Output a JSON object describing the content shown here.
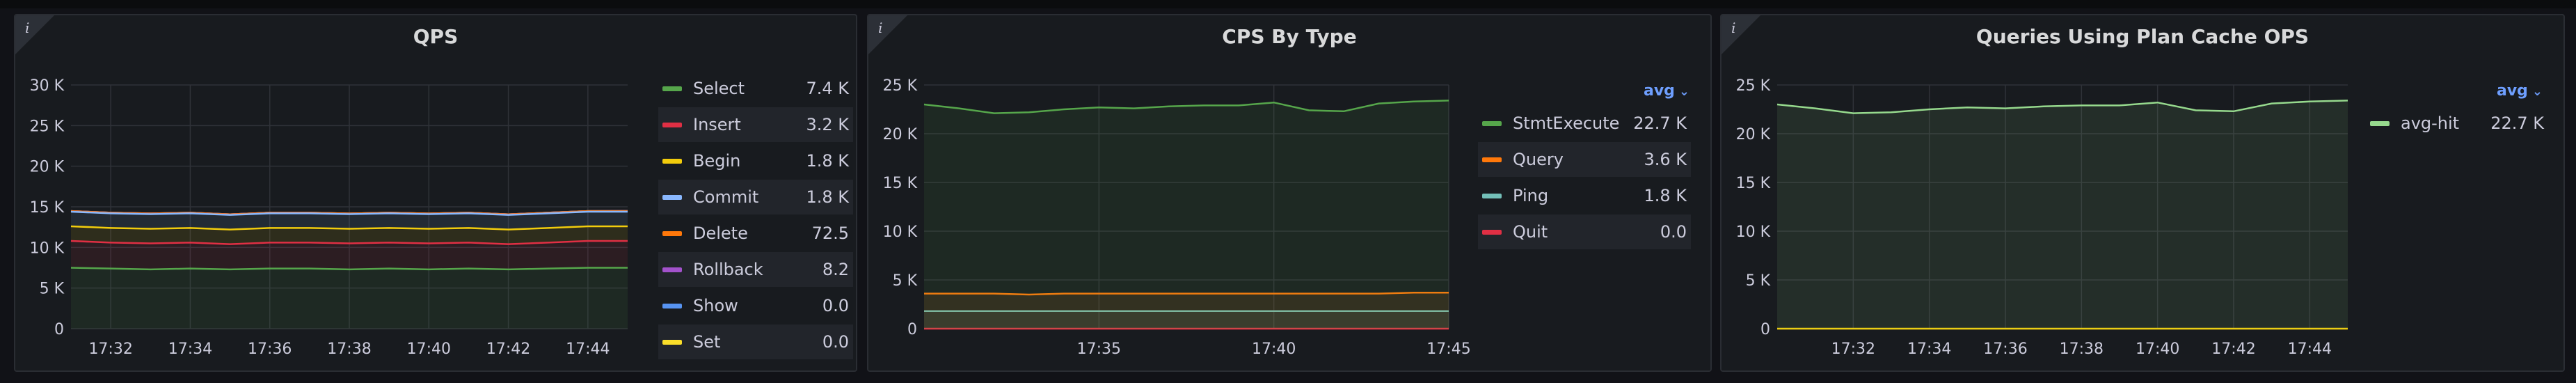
{
  "panels": [
    {
      "title": "QPS",
      "info": "i",
      "legend_header": "",
      "legend": [
        {
          "name": "Select",
          "value": "7.4 K",
          "color": "#56a64b"
        },
        {
          "name": "Insert",
          "value": "3.2 K",
          "color": "#e02f44"
        },
        {
          "name": "Begin",
          "value": "1.8 K",
          "color": "#f2cc0c"
        },
        {
          "name": "Commit",
          "value": "1.8 K",
          "color": "#8ab8ff"
        },
        {
          "name": "Delete",
          "value": "72.5",
          "color": "#ff780a"
        },
        {
          "name": "Rollback",
          "value": "8.2",
          "color": "#a352cc"
        },
        {
          "name": "Show",
          "value": "0.0",
          "color": "#5794f2"
        },
        {
          "name": "Set",
          "value": "0.0",
          "color": "#fade2a"
        }
      ]
    },
    {
      "title": "CPS By Type",
      "info": "i",
      "legend_header": "avg",
      "legend": [
        {
          "name": "StmtExecute",
          "value": "22.7 K",
          "color": "#56a64b"
        },
        {
          "name": "Query",
          "value": "3.6 K",
          "color": "#ff780a"
        },
        {
          "name": "Ping",
          "value": "1.8 K",
          "color": "#73bfb8"
        },
        {
          "name": "Quit",
          "value": "0.0",
          "color": "#e02f44"
        }
      ]
    },
    {
      "title": "Queries Using Plan Cache OPS",
      "info": "i",
      "legend_header": "avg",
      "legend": [
        {
          "name": "avg-hit",
          "value": "22.7 K",
          "color": "#96d98d"
        }
      ]
    }
  ],
  "chart_data": [
    {
      "type": "area",
      "title": "QPS",
      "xlabel": "",
      "ylabel": "",
      "ylim": [
        0,
        30000
      ],
      "yticks": [
        "0",
        "5 K",
        "10 K",
        "15 K",
        "20 K",
        "25 K",
        "30 K"
      ],
      "xticks": [
        "17:32",
        "17:34",
        "17:36",
        "17:38",
        "17:40",
        "17:42",
        "17:44"
      ],
      "x": [
        "17:31",
        "17:32",
        "17:33",
        "17:34",
        "17:35",
        "17:36",
        "17:37",
        "17:38",
        "17:39",
        "17:40",
        "17:41",
        "17:42",
        "17:43",
        "17:44",
        "17:45"
      ],
      "series": [
        {
          "name": "Select",
          "color": "#56a64b",
          "values": [
            7500,
            7400,
            7300,
            7400,
            7300,
            7400,
            7400,
            7300,
            7400,
            7300,
            7400,
            7300,
            7400,
            7500,
            7500
          ]
        },
        {
          "name": "Insert",
          "color": "#e02f44",
          "values": [
            3300,
            3200,
            3200,
            3200,
            3100,
            3200,
            3200,
            3200,
            3200,
            3200,
            3200,
            3100,
            3200,
            3300,
            3300
          ]
        },
        {
          "name": "Begin",
          "color": "#f2cc0c",
          "values": [
            1800,
            1800,
            1800,
            1800,
            1800,
            1800,
            1800,
            1800,
            1800,
            1800,
            1800,
            1800,
            1800,
            1800,
            1800
          ]
        },
        {
          "name": "Commit",
          "color": "#8ab8ff",
          "values": [
            1800,
            1800,
            1800,
            1800,
            1800,
            1800,
            1800,
            1800,
            1800,
            1800,
            1800,
            1800,
            1800,
            1800,
            1800
          ]
        },
        {
          "name": "Delete",
          "color": "#ff780a",
          "values": [
            72,
            72,
            73,
            72,
            72,
            73,
            72,
            72,
            73,
            72,
            72,
            73,
            72,
            72,
            73
          ]
        },
        {
          "name": "Rollback",
          "color": "#a352cc",
          "values": [
            8,
            8,
            8,
            8,
            8,
            8,
            8,
            8,
            8,
            8,
            8,
            8,
            8,
            8,
            8
          ]
        },
        {
          "name": "Show",
          "color": "#5794f2",
          "values": [
            0,
            0,
            0,
            0,
            0,
            0,
            0,
            0,
            0,
            0,
            0,
            0,
            0,
            0,
            0
          ]
        },
        {
          "name": "Set",
          "color": "#fade2a",
          "values": [
            0,
            0,
            0,
            0,
            0,
            0,
            0,
            0,
            0,
            0,
            0,
            0,
            0,
            0,
            0
          ]
        }
      ],
      "stacked": true,
      "grid": true,
      "legend": "right"
    },
    {
      "type": "area",
      "title": "CPS By Type",
      "xlabel": "",
      "ylabel": "",
      "ylim": [
        0,
        25000
      ],
      "yticks": [
        "0",
        "5 K",
        "10 K",
        "15 K",
        "20 K",
        "25 K"
      ],
      "xticks": [
        "17:35",
        "17:40",
        "17:45"
      ],
      "x": [
        "17:30",
        "17:31",
        "17:32",
        "17:33",
        "17:34",
        "17:35",
        "17:36",
        "17:37",
        "17:38",
        "17:39",
        "17:40",
        "17:41",
        "17:42",
        "17:43",
        "17:44",
        "17:45"
      ],
      "series": [
        {
          "name": "StmtExecute",
          "color": "#56a64b",
          "values": [
            23000,
            22600,
            22100,
            22200,
            22500,
            22700,
            22600,
            22800,
            22900,
            22900,
            23200,
            22400,
            22300,
            23100,
            23300,
            23400
          ]
        },
        {
          "name": "Query",
          "color": "#ff780a",
          "values": [
            3600,
            3600,
            3600,
            3500,
            3600,
            3600,
            3600,
            3600,
            3600,
            3600,
            3600,
            3600,
            3600,
            3600,
            3700,
            3700
          ]
        },
        {
          "name": "Ping",
          "color": "#73bfb8",
          "values": [
            1800,
            1800,
            1800,
            1800,
            1800,
            1800,
            1800,
            1800,
            1800,
            1800,
            1800,
            1800,
            1800,
            1800,
            1800,
            1800
          ]
        },
        {
          "name": "Quit",
          "color": "#e02f44",
          "values": [
            0,
            0,
            0,
            0,
            0,
            0,
            0,
            0,
            0,
            0,
            0,
            0,
            0,
            0,
            0,
            0
          ]
        }
      ],
      "stacked": false,
      "grid": true,
      "legend": "right"
    },
    {
      "type": "area",
      "title": "Queries Using Plan Cache OPS",
      "xlabel": "",
      "ylabel": "",
      "ylim": [
        0,
        25000
      ],
      "yticks": [
        "0",
        "5 K",
        "10 K",
        "15 K",
        "20 K",
        "25 K"
      ],
      "xticks": [
        "17:32",
        "17:34",
        "17:36",
        "17:38",
        "17:40",
        "17:42",
        "17:44"
      ],
      "x": [
        "17:30",
        "17:31",
        "17:32",
        "17:33",
        "17:34",
        "17:35",
        "17:36",
        "17:37",
        "17:38",
        "17:39",
        "17:40",
        "17:41",
        "17:42",
        "17:43",
        "17:44",
        "17:45"
      ],
      "series": [
        {
          "name": "avg-hit",
          "color": "#96d98d",
          "values": [
            23000,
            22600,
            22100,
            22200,
            22500,
            22700,
            22600,
            22800,
            22900,
            22900,
            23200,
            22400,
            22300,
            23100,
            23300,
            23400
          ]
        },
        {
          "name": "",
          "color": "#f2cc0c",
          "values": [
            0,
            0,
            0,
            0,
            0,
            0,
            0,
            0,
            0,
            0,
            0,
            0,
            0,
            0,
            0,
            0
          ]
        }
      ],
      "stacked": false,
      "grid": true,
      "legend": "right"
    }
  ]
}
